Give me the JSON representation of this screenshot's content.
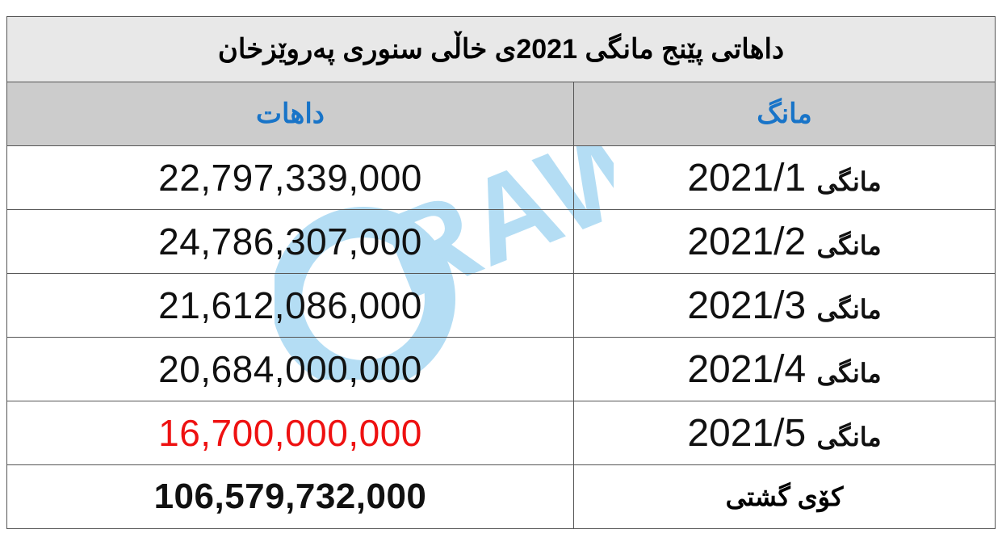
{
  "title": "داهاتی پێنج مانگی 2021ی خاڵی سنوری پەروێزخان",
  "headers": {
    "revenue": "داهات",
    "month": "مانگ"
  },
  "rows": [
    {
      "month_label": "مانگی",
      "month": "2021/1",
      "revenue": "22,797,339,000"
    },
    {
      "month_label": "مانگی",
      "month": "2021/2",
      "revenue": "24,786,307,000"
    },
    {
      "month_label": "مانگی",
      "month": "2021/3",
      "revenue": "21,612,086,000"
    },
    {
      "month_label": "مانگی",
      "month": "2021/4",
      "revenue": "20,684,000,000"
    },
    {
      "month_label": "مانگی",
      "month": "2021/5",
      "revenue": "16,700,000,000"
    }
  ],
  "total": {
    "label": "کۆی گشتی",
    "revenue": "106,579,732,000"
  },
  "watermark": {
    "text": "RAW"
  },
  "colors": {
    "header_text": "#1874c8",
    "highlight": "#ee1111",
    "watermark": "#2aa0e0"
  }
}
